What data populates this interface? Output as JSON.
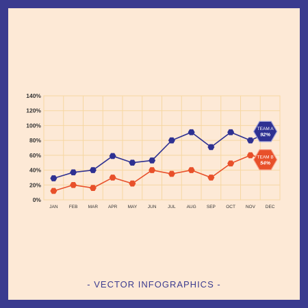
{
  "footer": {
    "text": "- VECTOR INFOGRAPHICS -"
  },
  "colors": {
    "background": "#3a3b8f",
    "panel": "#fde9d6",
    "grid": "#f6d7a2",
    "team_a": "#2e3192",
    "team_b": "#e8502a",
    "text": "#333333"
  },
  "chart_data": {
    "type": "line",
    "categories": [
      "JAN",
      "FEB",
      "MAR",
      "APR",
      "MAY",
      "JUN",
      "JUL",
      "AUG",
      "SEP",
      "OCT",
      "NOV",
      "DEC"
    ],
    "y_ticks": [
      "0%",
      "20%",
      "40%",
      "60%",
      "80%",
      "100%",
      "120%",
      "140%"
    ],
    "ylim": [
      0,
      140
    ],
    "grid": true,
    "series": [
      {
        "name": "TEAM A",
        "badge_value": "92%",
        "color": "#2e3192",
        "values": [
          29,
          37,
          40,
          59,
          50,
          53,
          80,
          91,
          71,
          91,
          80,
          92
        ]
      },
      {
        "name": "TEAM B",
        "badge_value": "54%",
        "color": "#e8502a",
        "values": [
          12,
          20,
          16,
          30,
          22,
          40,
          35,
          40,
          30,
          49,
          60,
          54
        ]
      }
    ]
  }
}
